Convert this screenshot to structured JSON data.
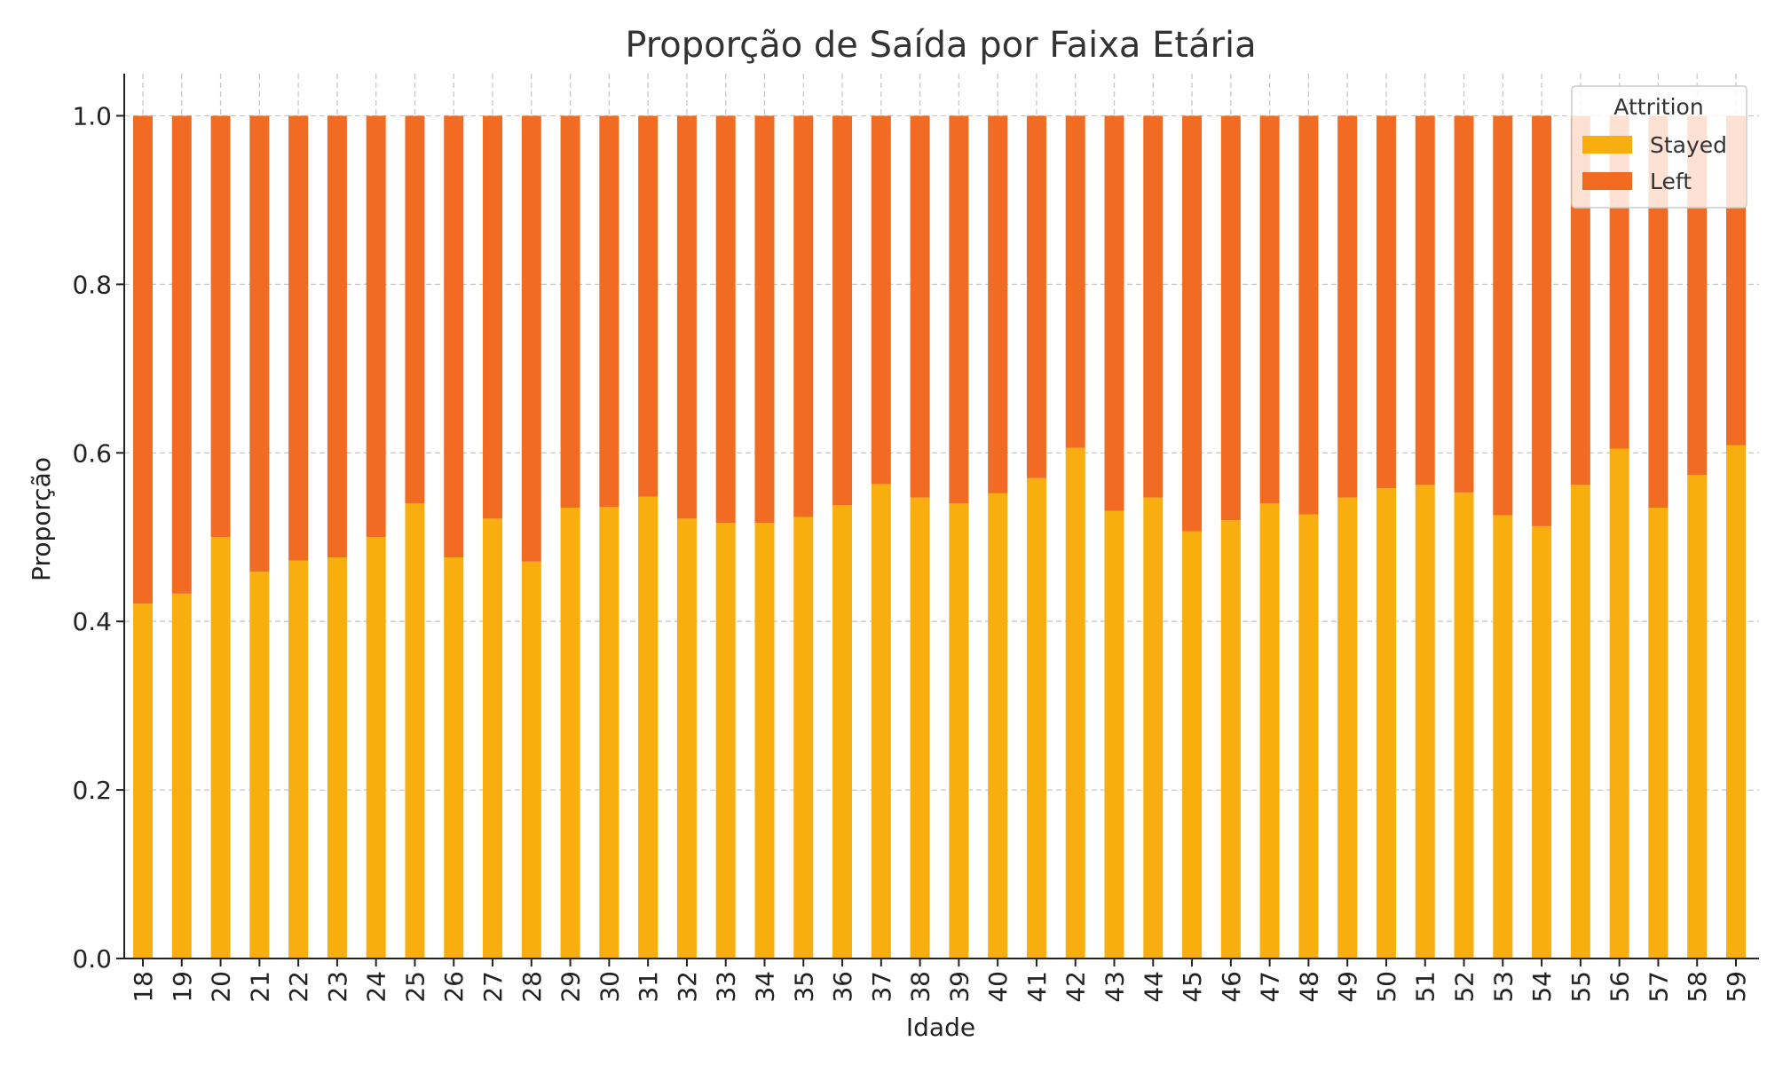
{
  "chart_data": {
    "type": "bar",
    "stacked": true,
    "title": "Proporção de Saída por Faixa Etária",
    "xlabel": "Idade",
    "ylabel": "Proporção",
    "ylim": [
      0,
      1.05
    ],
    "yticks": [
      "0.0",
      "0.2",
      "0.4",
      "0.6",
      "0.8",
      "1.0"
    ],
    "grid": true,
    "legend": {
      "title": "Attrition",
      "placement": "top-right"
    },
    "categories": [
      "18",
      "19",
      "20",
      "21",
      "22",
      "23",
      "24",
      "25",
      "26",
      "27",
      "28",
      "29",
      "30",
      "31",
      "32",
      "33",
      "34",
      "35",
      "36",
      "37",
      "38",
      "39",
      "40",
      "41",
      "42",
      "43",
      "44",
      "45",
      "46",
      "47",
      "48",
      "49",
      "50",
      "51",
      "52",
      "53",
      "54",
      "55",
      "56",
      "57",
      "58",
      "59"
    ],
    "series": [
      {
        "name": "Stayed",
        "color": "#F9AE0F",
        "values": [
          0.421,
          0.433,
          0.5,
          0.459,
          0.472,
          0.476,
          0.5,
          0.54,
          0.476,
          0.522,
          0.471,
          0.535,
          0.536,
          0.548,
          0.522,
          0.517,
          0.517,
          0.524,
          0.538,
          0.563,
          0.547,
          0.54,
          0.552,
          0.57,
          0.606,
          0.531,
          0.547,
          0.507,
          0.52,
          0.54,
          0.527,
          0.547,
          0.558,
          0.562,
          0.553,
          0.526,
          0.513,
          0.562,
          0.605,
          0.535,
          0.574,
          0.609
        ]
      },
      {
        "name": "Left",
        "color": "#F26B22",
        "values": [
          0.579,
          0.567,
          0.5,
          0.541,
          0.528,
          0.524,
          0.5,
          0.46,
          0.524,
          0.478,
          0.529,
          0.465,
          0.464,
          0.452,
          0.478,
          0.483,
          0.483,
          0.476,
          0.462,
          0.437,
          0.453,
          0.46,
          0.448,
          0.43,
          0.394,
          0.469,
          0.453,
          0.493,
          0.48,
          0.46,
          0.473,
          0.453,
          0.442,
          0.438,
          0.447,
          0.474,
          0.487,
          0.438,
          0.395,
          0.465,
          0.426,
          0.391
        ]
      }
    ]
  }
}
